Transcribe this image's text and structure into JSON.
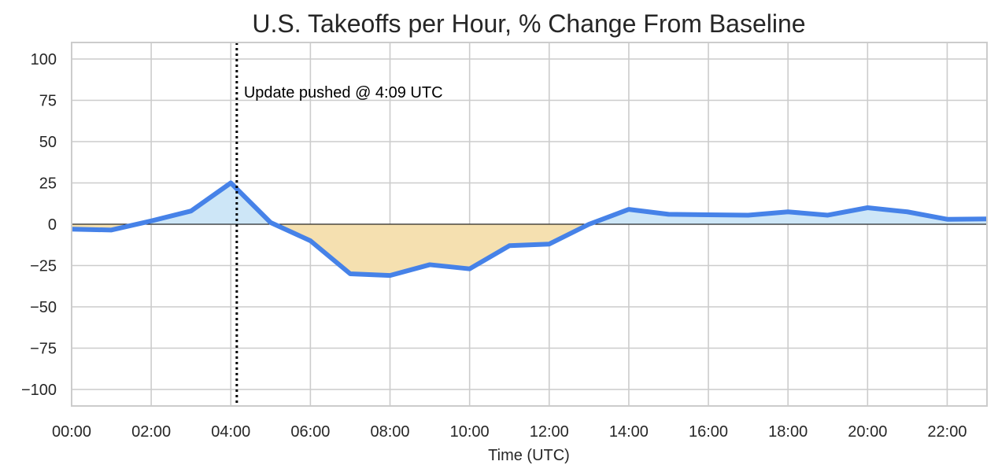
{
  "chart_data": {
    "type": "line",
    "title": "U.S. Takeoffs per Hour, % Change From Baseline",
    "xlabel": "Time (UTC)",
    "ylabel": "",
    "xlim": [
      0,
      23
    ],
    "ylim": [
      -110,
      110
    ],
    "x_ticks": [
      {
        "value": 0,
        "label": "00:00"
      },
      {
        "value": 2,
        "label": "02:00"
      },
      {
        "value": 4,
        "label": "04:00"
      },
      {
        "value": 6,
        "label": "06:00"
      },
      {
        "value": 8,
        "label": "08:00"
      },
      {
        "value": 10,
        "label": "10:00"
      },
      {
        "value": 12,
        "label": "12:00"
      },
      {
        "value": 14,
        "label": "14:00"
      },
      {
        "value": 16,
        "label": "16:00"
      },
      {
        "value": 18,
        "label": "18:00"
      },
      {
        "value": 20,
        "label": "20:00"
      },
      {
        "value": 22,
        "label": "22:00"
      }
    ],
    "y_ticks": [
      {
        "value": 100,
        "label": "100"
      },
      {
        "value": 75,
        "label": "75"
      },
      {
        "value": 50,
        "label": "50"
      },
      {
        "value": 25,
        "label": "25"
      },
      {
        "value": 0,
        "label": "0"
      },
      {
        "value": -25,
        "label": "−25"
      },
      {
        "value": -50,
        "label": "−50"
      },
      {
        "value": -75,
        "label": "−75"
      },
      {
        "value": -100,
        "label": "−100"
      }
    ],
    "grid": true,
    "series": [
      {
        "x": [
          0,
          1,
          2,
          3,
          4,
          5,
          6,
          7,
          8,
          9,
          10,
          11,
          12,
          13,
          14,
          15,
          16,
          17,
          18,
          19,
          20,
          21,
          22,
          23
        ],
        "values": [
          -3,
          -3.5,
          2,
          8,
          25,
          1,
          -10,
          -30,
          -31,
          -24.5,
          -27,
          -13,
          -12,
          0,
          9,
          6,
          5.7,
          5.5,
          7.5,
          5.5,
          10,
          7.5,
          3,
          3.2
        ]
      }
    ],
    "annotations": [
      {
        "x": 4.15,
        "text": "Update pushed @ 4:09 UTC",
        "style": "dotted-vertical-line"
      }
    ],
    "colors": {
      "line": "#4682e8",
      "fill_positive": "#cde6f7",
      "fill_negative": "#f5e0b0",
      "grid": "#cccccc",
      "baseline": "#000000"
    }
  }
}
